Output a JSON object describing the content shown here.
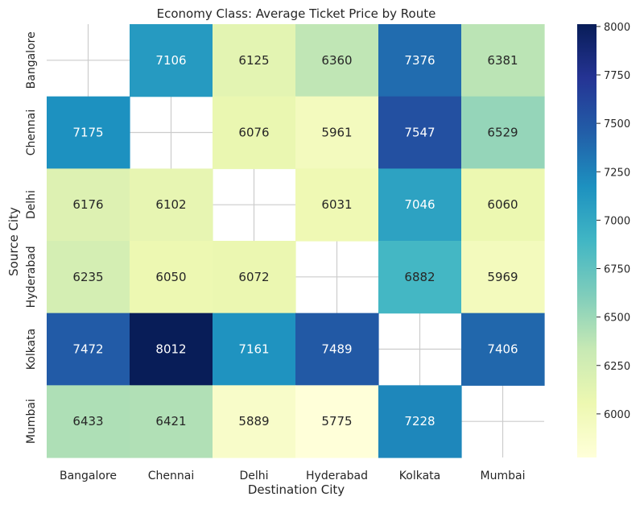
{
  "chart_data": {
    "type": "heatmap",
    "title": "Economy Class: Average Ticket Price by Route",
    "xlabel": "Destination City",
    "ylabel": "Source City",
    "x_categories": [
      "Bangalore",
      "Chennai",
      "Delhi",
      "Hyderabad",
      "Kolkata",
      "Mumbai"
    ],
    "y_categories": [
      "Bangalore",
      "Chennai",
      "Delhi",
      "Hyderabad",
      "Kolkata",
      "Mumbai"
    ],
    "values": [
      [
        null,
        7106,
        6125,
        6360,
        7376,
        6381
      ],
      [
        7175,
        null,
        6076,
        5961,
        7547,
        6529
      ],
      [
        6176,
        6102,
        null,
        6031,
        7046,
        6060
      ],
      [
        6235,
        6050,
        6072,
        null,
        6882,
        5969
      ],
      [
        7472,
        8012,
        7161,
        7489,
        null,
        7406
      ],
      [
        6433,
        6421,
        5889,
        5775,
        7228,
        null
      ]
    ],
    "colorscale": "YlGnBu",
    "colorbar": {
      "range": [
        5775,
        8012
      ],
      "ticks": [
        6000,
        6250,
        6500,
        6750,
        7000,
        7250,
        7500,
        7750,
        8000
      ]
    },
    "grid": true
  }
}
